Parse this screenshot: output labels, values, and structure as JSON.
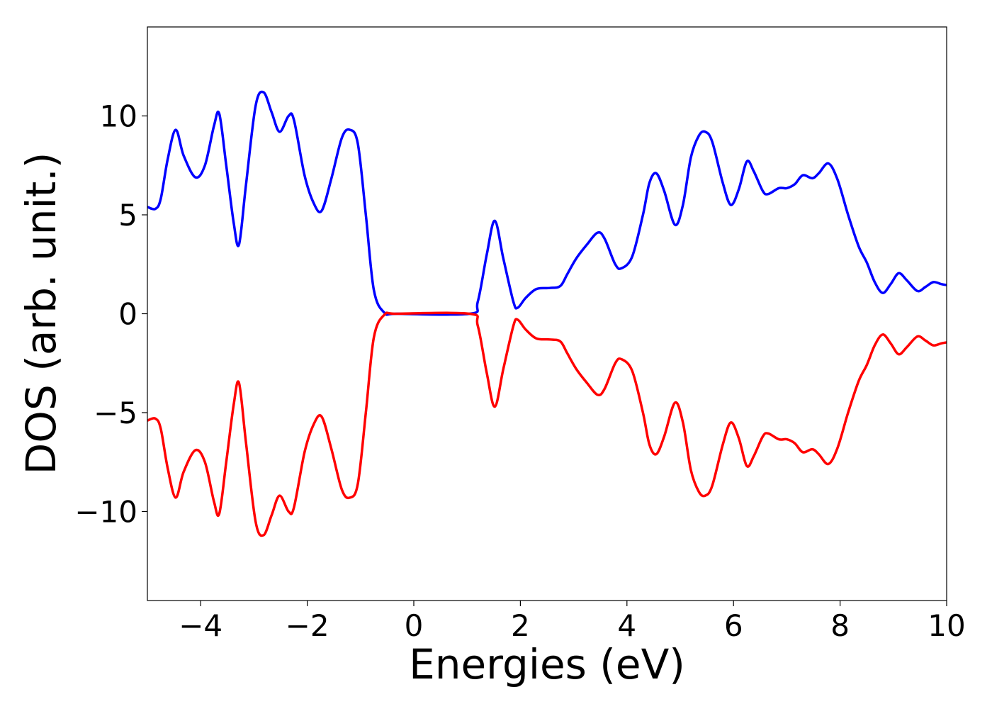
{
  "chart_data": {
    "type": "line",
    "title": "",
    "xlabel": "Energies (eV)",
    "ylabel": "DOS (arb. unit.)",
    "xlim": [
      -5,
      10
    ],
    "ylim": [
      -14.5,
      14.5
    ],
    "xticks": [
      -4,
      -2,
      0,
      2,
      4,
      6,
      8,
      10
    ],
    "xtick_labels": [
      "−4",
      "−2",
      "0",
      "2",
      "4",
      "6",
      "8",
      "10"
    ],
    "yticks": [
      -10,
      -5,
      0,
      5,
      10
    ],
    "ytick_labels": [
      "−10",
      "−5",
      "0",
      "5",
      "10"
    ],
    "grid": false,
    "legend": "none",
    "series": [
      {
        "color": "#0000ff",
        "points": [
          [
            -5.0,
            5.4
          ],
          [
            -4.85,
            5.3
          ],
          [
            -4.75,
            5.8
          ],
          [
            -4.62,
            7.8
          ],
          [
            -4.47,
            9.3
          ],
          [
            -4.32,
            8.0
          ],
          [
            -4.1,
            6.9
          ],
          [
            -3.92,
            7.5
          ],
          [
            -3.75,
            9.5
          ],
          [
            -3.65,
            10.1
          ],
          [
            -3.52,
            7.5
          ],
          [
            -3.38,
            4.6
          ],
          [
            -3.28,
            3.5
          ],
          [
            -3.15,
            6.5
          ],
          [
            -2.97,
            10.5
          ],
          [
            -2.82,
            11.2
          ],
          [
            -2.67,
            10.2
          ],
          [
            -2.52,
            9.2
          ],
          [
            -2.35,
            10.0
          ],
          [
            -2.25,
            9.8
          ],
          [
            -2.05,
            7.0
          ],
          [
            -1.88,
            5.6
          ],
          [
            -1.73,
            5.2
          ],
          [
            -1.55,
            6.8
          ],
          [
            -1.35,
            8.9
          ],
          [
            -1.2,
            9.3
          ],
          [
            -1.05,
            8.6
          ],
          [
            -0.9,
            5.0
          ],
          [
            -0.75,
            1.2
          ],
          [
            -0.55,
            0.05
          ],
          [
            -0.3,
            0.0
          ],
          [
            1.05,
            0.0
          ],
          [
            1.2,
            0.6
          ],
          [
            1.37,
            3.0
          ],
          [
            1.52,
            4.7
          ],
          [
            1.68,
            2.8
          ],
          [
            1.87,
            0.6
          ],
          [
            1.95,
            0.3
          ],
          [
            2.1,
            0.8
          ],
          [
            2.3,
            1.25
          ],
          [
            2.55,
            1.3
          ],
          [
            2.75,
            1.4
          ],
          [
            2.88,
            2.0
          ],
          [
            3.05,
            2.8
          ],
          [
            3.25,
            3.5
          ],
          [
            3.45,
            4.1
          ],
          [
            3.58,
            3.8
          ],
          [
            3.78,
            2.5
          ],
          [
            3.9,
            2.3
          ],
          [
            4.1,
            2.9
          ],
          [
            4.3,
            5.0
          ],
          [
            4.42,
            6.6
          ],
          [
            4.55,
            7.1
          ],
          [
            4.7,
            6.2
          ],
          [
            4.9,
            4.5
          ],
          [
            5.05,
            5.5
          ],
          [
            5.2,
            7.9
          ],
          [
            5.35,
            9.0
          ],
          [
            5.47,
            9.2
          ],
          [
            5.6,
            8.7
          ],
          [
            5.8,
            6.6
          ],
          [
            5.95,
            5.5
          ],
          [
            6.1,
            6.3
          ],
          [
            6.25,
            7.7
          ],
          [
            6.38,
            7.2
          ],
          [
            6.55,
            6.2
          ],
          [
            6.65,
            6.05
          ],
          [
            6.85,
            6.35
          ],
          [
            7.0,
            6.35
          ],
          [
            7.15,
            6.55
          ],
          [
            7.3,
            7.0
          ],
          [
            7.48,
            6.85
          ],
          [
            7.6,
            7.1
          ],
          [
            7.78,
            7.6
          ],
          [
            7.95,
            6.8
          ],
          [
            8.15,
            5.0
          ],
          [
            8.35,
            3.4
          ],
          [
            8.5,
            2.6
          ],
          [
            8.65,
            1.6
          ],
          [
            8.8,
            1.05
          ],
          [
            8.95,
            1.5
          ],
          [
            9.1,
            2.05
          ],
          [
            9.25,
            1.7
          ],
          [
            9.45,
            1.15
          ],
          [
            9.6,
            1.35
          ],
          [
            9.75,
            1.6
          ],
          [
            9.9,
            1.5
          ],
          [
            10.0,
            1.45
          ]
        ]
      },
      {
        "color": "#ff0000",
        "points": [
          [
            -5.0,
            -5.4
          ],
          [
            -4.85,
            -5.3
          ],
          [
            -4.75,
            -5.8
          ],
          [
            -4.62,
            -7.8
          ],
          [
            -4.47,
            -9.3
          ],
          [
            -4.32,
            -8.0
          ],
          [
            -4.1,
            -6.9
          ],
          [
            -3.92,
            -7.5
          ],
          [
            -3.75,
            -9.5
          ],
          [
            -3.65,
            -10.1
          ],
          [
            -3.52,
            -7.5
          ],
          [
            -3.38,
            -4.6
          ],
          [
            -3.28,
            -3.5
          ],
          [
            -3.15,
            -6.5
          ],
          [
            -2.97,
            -10.5
          ],
          [
            -2.82,
            -11.2
          ],
          [
            -2.67,
            -10.2
          ],
          [
            -2.52,
            -9.2
          ],
          [
            -2.35,
            -10.0
          ],
          [
            -2.25,
            -9.8
          ],
          [
            -2.05,
            -7.0
          ],
          [
            -1.88,
            -5.6
          ],
          [
            -1.73,
            -5.2
          ],
          [
            -1.55,
            -6.8
          ],
          [
            -1.35,
            -8.9
          ],
          [
            -1.2,
            -9.3
          ],
          [
            -1.05,
            -8.6
          ],
          [
            -0.9,
            -5.0
          ],
          [
            -0.75,
            -1.2
          ],
          [
            -0.55,
            -0.05
          ],
          [
            -0.3,
            0.0
          ],
          [
            1.05,
            0.0
          ],
          [
            1.2,
            -0.6
          ],
          [
            1.37,
            -3.0
          ],
          [
            1.52,
            -4.7
          ],
          [
            1.68,
            -2.8
          ],
          [
            1.87,
            -0.6
          ],
          [
            1.95,
            -0.3
          ],
          [
            2.1,
            -0.8
          ],
          [
            2.3,
            -1.25
          ],
          [
            2.55,
            -1.3
          ],
          [
            2.75,
            -1.4
          ],
          [
            2.88,
            -2.0
          ],
          [
            3.05,
            -2.8
          ],
          [
            3.25,
            -3.5
          ],
          [
            3.45,
            -4.1
          ],
          [
            3.58,
            -3.8
          ],
          [
            3.78,
            -2.5
          ],
          [
            3.9,
            -2.3
          ],
          [
            4.1,
            -2.9
          ],
          [
            4.3,
            -5.0
          ],
          [
            4.42,
            -6.6
          ],
          [
            4.55,
            -7.1
          ],
          [
            4.7,
            -6.2
          ],
          [
            4.9,
            -4.5
          ],
          [
            5.05,
            -5.5
          ],
          [
            5.2,
            -7.9
          ],
          [
            5.35,
            -9.0
          ],
          [
            5.47,
            -9.2
          ],
          [
            5.6,
            -8.7
          ],
          [
            5.8,
            -6.6
          ],
          [
            5.95,
            -5.5
          ],
          [
            6.1,
            -6.3
          ],
          [
            6.25,
            -7.7
          ],
          [
            6.38,
            -7.2
          ],
          [
            6.55,
            -6.2
          ],
          [
            6.65,
            -6.05
          ],
          [
            6.85,
            -6.35
          ],
          [
            7.0,
            -6.35
          ],
          [
            7.15,
            -6.55
          ],
          [
            7.3,
            -7.0
          ],
          [
            7.48,
            -6.85
          ],
          [
            7.6,
            -7.1
          ],
          [
            7.78,
            -7.6
          ],
          [
            7.95,
            -6.8
          ],
          [
            8.15,
            -5.0
          ],
          [
            8.35,
            -3.4
          ],
          [
            8.5,
            -2.6
          ],
          [
            8.65,
            -1.6
          ],
          [
            8.8,
            -1.05
          ],
          [
            8.95,
            -1.5
          ],
          [
            9.1,
            -2.05
          ],
          [
            9.25,
            -1.7
          ],
          [
            9.45,
            -1.15
          ],
          [
            9.6,
            -1.35
          ],
          [
            9.75,
            -1.6
          ],
          [
            9.9,
            -1.5
          ],
          [
            10.0,
            -1.45
          ]
        ]
      }
    ]
  }
}
